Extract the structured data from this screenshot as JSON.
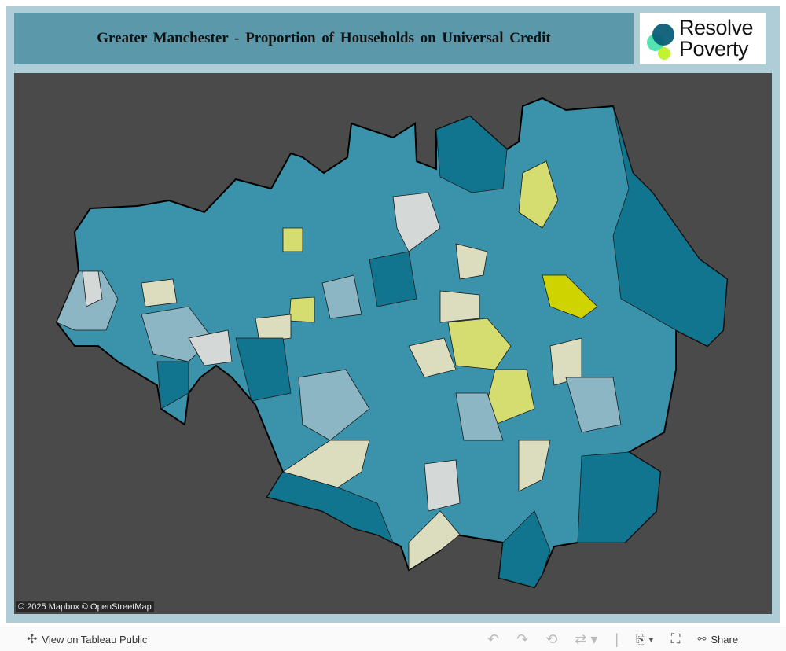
{
  "header": {
    "title": "Greater Manchester - Proportion of Households on Universal Credit"
  },
  "logo": {
    "text_line1": "Resolve",
    "text_line2": "Poverty",
    "colors": [
      "#0b5e78",
      "#3fe0a8",
      "#b9f21c"
    ]
  },
  "map": {
    "attribution": "© 2025 Mapbox  © OpenStreetMap",
    "background_color": "#4a4a4a",
    "color_scale": {
      "high": "#11758f",
      "mid_high": "#3a93ab",
      "mid": "#8cb6c4",
      "neutral": "#d4d8d6",
      "low_mid": "#dcdcbe",
      "low": "#d5dc70",
      "lowest": "#cfd400"
    }
  },
  "toolbar": {
    "view_on_tableau": "View on Tableau Public",
    "share": "Share",
    "icons": [
      "undo-icon",
      "redo-icon",
      "revert-icon",
      "refresh-icon",
      "download-icon",
      "fullscreen-icon",
      "share-icon"
    ]
  }
}
